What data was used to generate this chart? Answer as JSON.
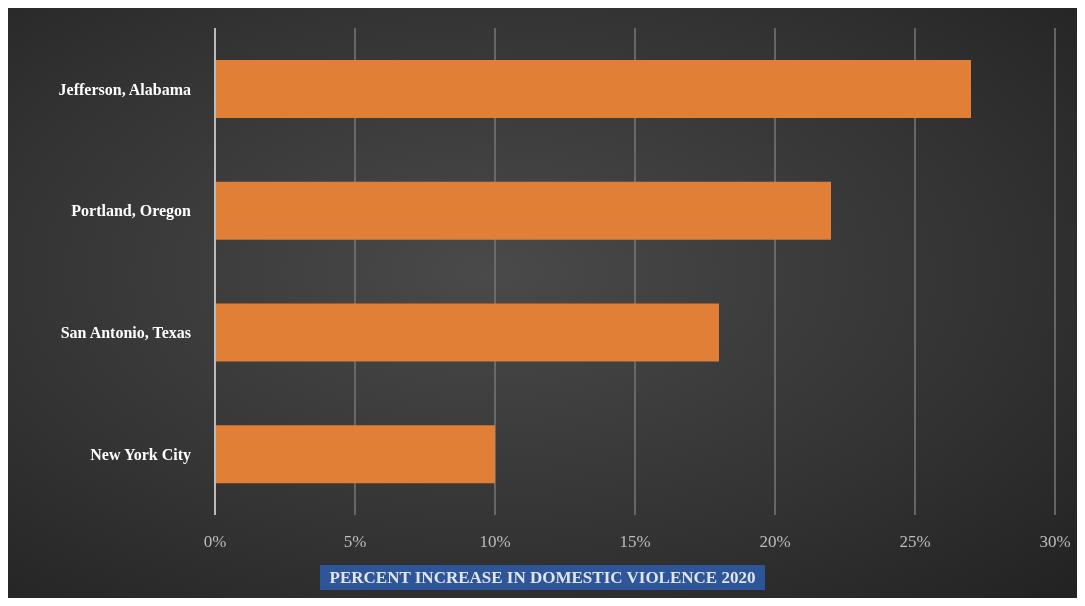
{
  "chart_data": {
    "type": "bar",
    "orientation": "horizontal",
    "xlabel": "PERCENT INCREASE IN DOMESTIC VIOLENCE 2020",
    "categories": [
      "Jefferson, Alabama",
      "Portland, Oregon",
      "San Antonio, Texas",
      "New York City"
    ],
    "values": [
      27,
      22,
      18,
      10
    ],
    "color": "#e07f35",
    "xlim": [
      0,
      30
    ],
    "xticks": [
      {
        "value": 0,
        "label": "0%"
      },
      {
        "value": 5,
        "label": "5%"
      },
      {
        "value": 10,
        "label": "10%"
      },
      {
        "value": 15,
        "label": "15%"
      },
      {
        "value": 20,
        "label": "20%"
      },
      {
        "value": 25,
        "label": "25%"
      },
      {
        "value": 30,
        "label": "30%"
      }
    ],
    "grid": "x",
    "legend": false
  }
}
